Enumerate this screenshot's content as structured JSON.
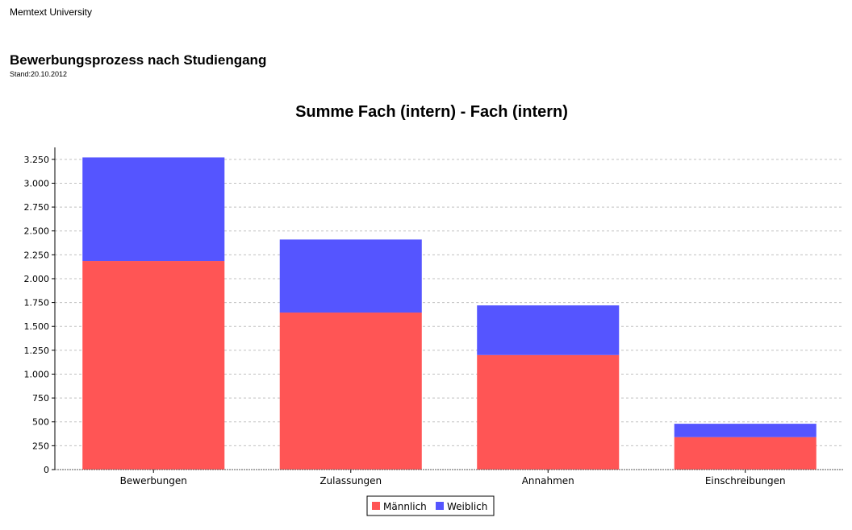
{
  "header": {
    "organization": "Memtext University",
    "title": "Bewerbungsprozess nach Studiengang",
    "date": "Stand:20.10.2012"
  },
  "colors": {
    "maennlich": "#ff5555",
    "weiblich": "#5555ff",
    "grid": "#c0c0c0",
    "axis": "#000000"
  },
  "chart_data": {
    "type": "bar",
    "stacked": true,
    "title": "Summe Fach (intern) - Fach (intern)",
    "xlabel": "",
    "ylabel": "",
    "ylim": [
      0,
      3375
    ],
    "yticks": [
      {
        "value": 0,
        "label": "0"
      },
      {
        "value": 250,
        "label": "250"
      },
      {
        "value": 500,
        "label": "500"
      },
      {
        "value": 750,
        "label": "750"
      },
      {
        "value": 1000,
        "label": "1.000"
      },
      {
        "value": 1250,
        "label": "1.250"
      },
      {
        "value": 1500,
        "label": "1.500"
      },
      {
        "value": 1750,
        "label": "1.750"
      },
      {
        "value": 2000,
        "label": "2.000"
      },
      {
        "value": 2250,
        "label": "2.250"
      },
      {
        "value": 2500,
        "label": "2.500"
      },
      {
        "value": 2750,
        "label": "2.750"
      },
      {
        "value": 3000,
        "label": "3.000"
      },
      {
        "value": 3250,
        "label": "3.250"
      }
    ],
    "grid": true,
    "legend_position": "bottom",
    "categories": [
      "Bewerbungen",
      "Zulassungen",
      "Annahmen",
      "Einschreibungen"
    ],
    "series": [
      {
        "name": "Männlich",
        "color": "#ff5555",
        "values": [
          2185,
          1645,
          1200,
          340
        ]
      },
      {
        "name": "Weiblich",
        "color": "#5555ff",
        "values": [
          1085,
          765,
          520,
          140
        ]
      }
    ]
  }
}
